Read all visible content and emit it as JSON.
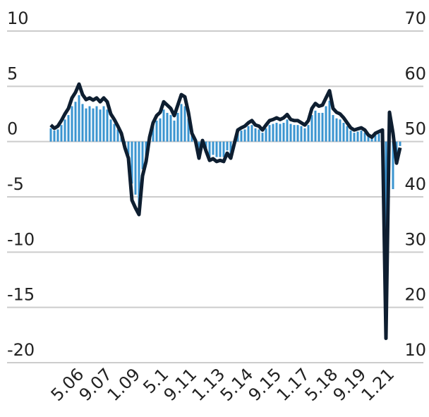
{
  "chart_data": {
    "type": "bar",
    "categories": [
      null,
      null,
      null,
      null,
      null,
      null,
      null,
      null,
      "5.06",
      null,
      null,
      null,
      null,
      null,
      null,
      null,
      "9.07",
      null,
      null,
      null,
      null,
      null,
      null,
      null,
      "1.09",
      null,
      null,
      null,
      null,
      null,
      null,
      null,
      "5.1",
      null,
      null,
      null,
      null,
      null,
      null,
      null,
      "9.11",
      null,
      null,
      null,
      null,
      null,
      null,
      null,
      "1.13",
      null,
      null,
      null,
      null,
      null,
      null,
      null,
      "5.14",
      null,
      null,
      null,
      null,
      null,
      null,
      null,
      "9.15",
      null,
      null,
      null,
      null,
      null,
      null,
      null,
      "1.17",
      null,
      null,
      null,
      null,
      null,
      null,
      null,
      "5.18",
      null,
      null,
      null,
      null,
      null,
      null,
      null,
      "9.19",
      null,
      null,
      null,
      null,
      null,
      null,
      null,
      "1.21",
      null,
      null,
      null
    ],
    "series": [
      {
        "type": "bar",
        "color": "#3a94d0",
        "values": [
          1.2,
          1.0,
          1.1,
          1.5,
          2.0,
          2.4,
          3.2,
          3.6,
          4.2,
          3.4,
          3.0,
          3.2,
          3.0,
          3.2,
          2.9,
          3.2,
          2.9,
          2.0,
          1.6,
          1.1,
          0.6,
          -0.4,
          -1.2,
          -3.8,
          -4.8,
          -5.8,
          -2.5,
          -1.4,
          0.3,
          1.4,
          1.9,
          2.1,
          2.9,
          2.6,
          2.4,
          1.9,
          2.6,
          3.4,
          3.2,
          2.1,
          0.6,
          0.1,
          -1.2,
          0.1,
          -0.7,
          -1.4,
          -1.2,
          -1.4,
          -1.4,
          -1.4,
          -0.8,
          -1.2,
          -0.2,
          0.8,
          1.0,
          1.1,
          1.4,
          1.5,
          1.2,
          1.1,
          0.8,
          1.2,
          1.5,
          1.6,
          1.7,
          1.6,
          1.7,
          2.0,
          1.6,
          1.5,
          1.5,
          1.4,
          1.2,
          1.5,
          2.4,
          2.8,
          2.6,
          2.6,
          3.2,
          3.7,
          2.4,
          2.1,
          2.0,
          1.7,
          1.4,
          1.0,
          0.8,
          0.9,
          1.0,
          0.8,
          0.5,
          0.3,
          0.6,
          0.7,
          0.8,
          -14.7,
          2.1,
          -4.3,
          -1.6,
          -0.4
        ]
      },
      {
        "type": "line",
        "axis": "y2",
        "color": "#0e1e30",
        "values": [
          53,
          52.4,
          52.8,
          53.8,
          55,
          56,
          57.9,
          58.9,
          60.4,
          58.5,
          57.6,
          57.9,
          57.5,
          57.9,
          57.2,
          57.9,
          57.2,
          55,
          54,
          52.8,
          51.5,
          48.9,
          47,
          39.4,
          38,
          36.8,
          43.8,
          46.4,
          50.8,
          53.4,
          54.7,
          55.3,
          57.2,
          56.6,
          56,
          54.7,
          56.6,
          58.5,
          58.1,
          55.3,
          51.5,
          50.2,
          47,
          50.2,
          48.3,
          46.6,
          46.9,
          46.4,
          46.6,
          46.4,
          47.9,
          47,
          49.6,
          52.1,
          52.5,
          52.8,
          53.4,
          53.8,
          53,
          52.8,
          52.1,
          53,
          53.8,
          54,
          54.3,
          54,
          54.3,
          54.9,
          54,
          53.8,
          53.8,
          53.4,
          53,
          53.8,
          56,
          56.9,
          56.4,
          56.6,
          57.9,
          59.2,
          56,
          55.3,
          55,
          54.3,
          53.4,
          52.5,
          52.1,
          52.3,
          52.5,
          52.1,
          51.2,
          50.8,
          51.5,
          51.8,
          52.1,
          14.4,
          55.3,
          51.5,
          46.1,
          48.9
        ]
      }
    ],
    "ylim": [
      -20,
      10
    ],
    "yticks": [
      -20,
      -15,
      -10,
      -5,
      0,
      5,
      10
    ],
    "y2lim": [
      10,
      70
    ],
    "y2ticks": [
      10,
      20,
      30,
      40,
      50,
      60,
      70
    ],
    "grid": true
  }
}
